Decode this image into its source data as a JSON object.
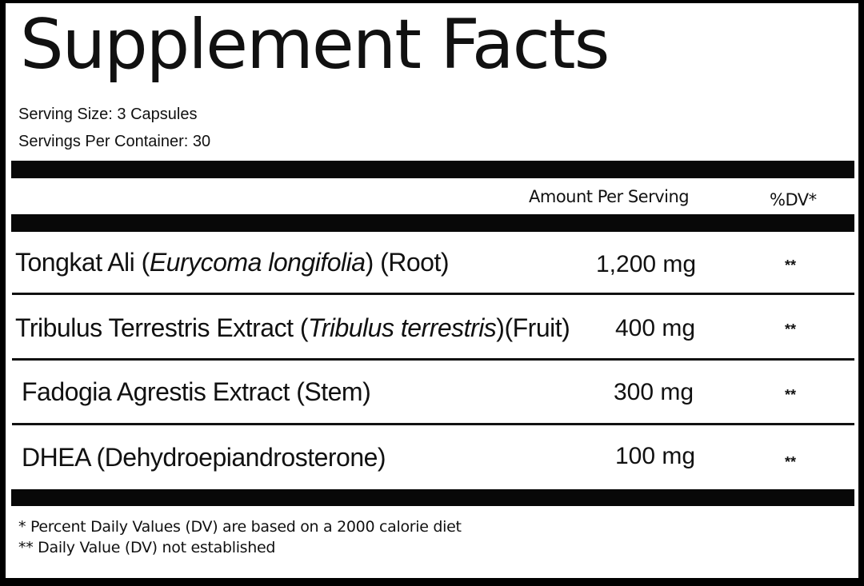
{
  "title": "Supplement Facts",
  "serving_size": "Serving Size: 3 Capsules",
  "servings_per_container": "Servings Per Container: 30",
  "header": {
    "amount": "Amount Per Serving",
    "dv": "%DV*"
  },
  "rows": [
    {
      "name": "Tongkat Ali (",
      "latin": "Eurycoma longifolia",
      "part": ") (Root)",
      "amount": "1,200 mg",
      "dv": "**"
    },
    {
      "name": "Tribulus Terrestris Extract (",
      "latin": "Tribulus terrestris",
      "part": ")(Fruit)",
      "amount": "400 mg",
      "dv": "**"
    },
    {
      "name": "Fadogia Agrestis Extract (Stem)",
      "latin": "",
      "part": "",
      "amount": "300 mg",
      "dv": "**"
    },
    {
      "name": "DHEA (Dehydroepiandrosterone)",
      "latin": "",
      "part": "",
      "amount": "100 mg",
      "dv": "**"
    }
  ],
  "footnotes": [
    "* Percent Daily Values (DV) are based on a 2000 calorie diet",
    "** Daily Value (DV) not established"
  ]
}
